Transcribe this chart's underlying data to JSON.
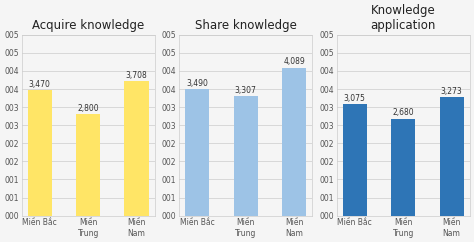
{
  "charts": [
    {
      "title": "Acquire knowledge",
      "categories": [
        "Miền Bắc",
        "Miền\nTrung",
        "Miền\nNam"
      ],
      "values": [
        3.47,
        2.8,
        3.708
      ],
      "labels": [
        "3,470",
        "2,800",
        "3,708"
      ],
      "bar_color": "#FFE566"
    },
    {
      "title": "Share knowledge",
      "categories": [
        "Miền Bắc",
        "Miền\nTrung",
        "Miền\nNam"
      ],
      "values": [
        3.49,
        3.307,
        4.089
      ],
      "labels": [
        "3,490",
        "3,307",
        "4,089"
      ],
      "bar_color": "#9DC3E6"
    },
    {
      "title": "Knowledge\napplication",
      "categories": [
        "Miền Bắc",
        "Miền\nTrung",
        "Miền\nNam"
      ],
      "values": [
        3.075,
        2.68,
        3.273
      ],
      "labels": [
        "3,075",
        "2,680",
        "3,273"
      ],
      "bar_color": "#2E75B6"
    }
  ],
  "ylim": [
    0,
    5.0
  ],
  "yticks": [
    0.0,
    0.5,
    1.0,
    1.5,
    2.0,
    2.5,
    3.0,
    3.5,
    4.0,
    4.5,
    5.0
  ],
  "ytick_labels": [
    "000",
    "001",
    "001",
    "002",
    "002",
    "003",
    "003",
    "004",
    "004",
    "005",
    "005"
  ],
  "background_color": "#f5f5f5",
  "plot_bg": "#f5f5f5",
  "grid_color": "#cccccc",
  "title_fontsize": 8.5,
  "label_fontsize": 5.5,
  "tick_fontsize": 5.5,
  "bar_width": 0.5
}
